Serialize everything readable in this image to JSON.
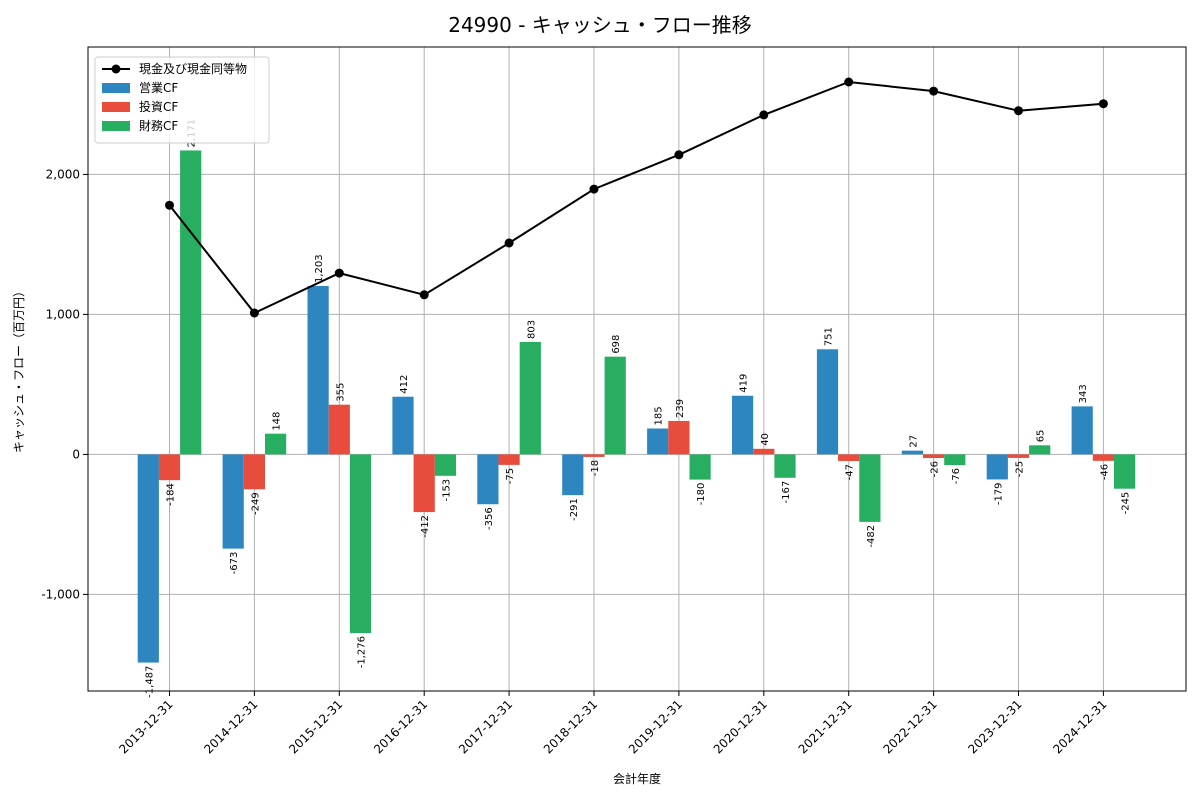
{
  "chart_data": {
    "type": "bar",
    "title": "24990 - キャッシュ・フロー推移",
    "xlabel": "会計年度",
    "ylabel": "キャッシュ・フロー（百万円）",
    "categories": [
      "2013-12-31",
      "2014-12-31",
      "2015-12-31",
      "2016-12-31",
      "2017-12-31",
      "2018-12-31",
      "2019-12-31",
      "2020-12-31",
      "2021-12-31",
      "2022-12-31",
      "2023-12-31",
      "2024-12-31"
    ],
    "bar_labels": {
      "営業CF": [
        "-1,487",
        "-673",
        "1,203",
        "412",
        "-356",
        "-291",
        "185",
        "419",
        "751",
        "27",
        "-179",
        "343"
      ],
      "投資CF": [
        "-184",
        "-249",
        "355",
        "-412",
        "-75",
        "-18",
        "239",
        "40",
        "-47",
        "-26",
        "-25",
        "-46"
      ],
      "財務CF": [
        "2,171",
        "148",
        "-1,276",
        "-153",
        "803",
        "698",
        "-180",
        "-167",
        "-482",
        "-76",
        "65",
        "-245"
      ]
    },
    "series": [
      {
        "name": "営業CF",
        "type": "bar",
        "color": "#2e86c1",
        "values": [
          -1487,
          -673,
          1203,
          412,
          -356,
          -291,
          185,
          419,
          751,
          27,
          -179,
          343
        ]
      },
      {
        "name": "投資CF",
        "type": "bar",
        "color": "#e74c3c",
        "values": [
          -184,
          -249,
          355,
          -412,
          -75,
          -18,
          239,
          40,
          -47,
          -26,
          -25,
          -46
        ]
      },
      {
        "name": "財務CF",
        "type": "bar",
        "color": "#27ae60",
        "values": [
          2171,
          148,
          -1276,
          -153,
          803,
          698,
          -180,
          -167,
          -482,
          -76,
          65,
          -245
        ]
      },
      {
        "name": "現金及び現金同等物",
        "type": "line",
        "color": "#000000",
        "values": [
          1780,
          1010,
          1295,
          1140,
          1510,
          1895,
          2140,
          2425,
          2660,
          2595,
          2455,
          2505
        ]
      }
    ],
    "legend_order": [
      "現金及び現金同等物",
      "営業CF",
      "投資CF",
      "財務CF"
    ],
    "yticks": [
      -1000,
      0,
      1000,
      2000
    ],
    "ytick_labels": [
      "-1,000",
      "0",
      "1,000",
      "2,000"
    ],
    "ylim": [
      -1690,
      2910
    ],
    "grid": true,
    "legend_position": "top-left"
  }
}
